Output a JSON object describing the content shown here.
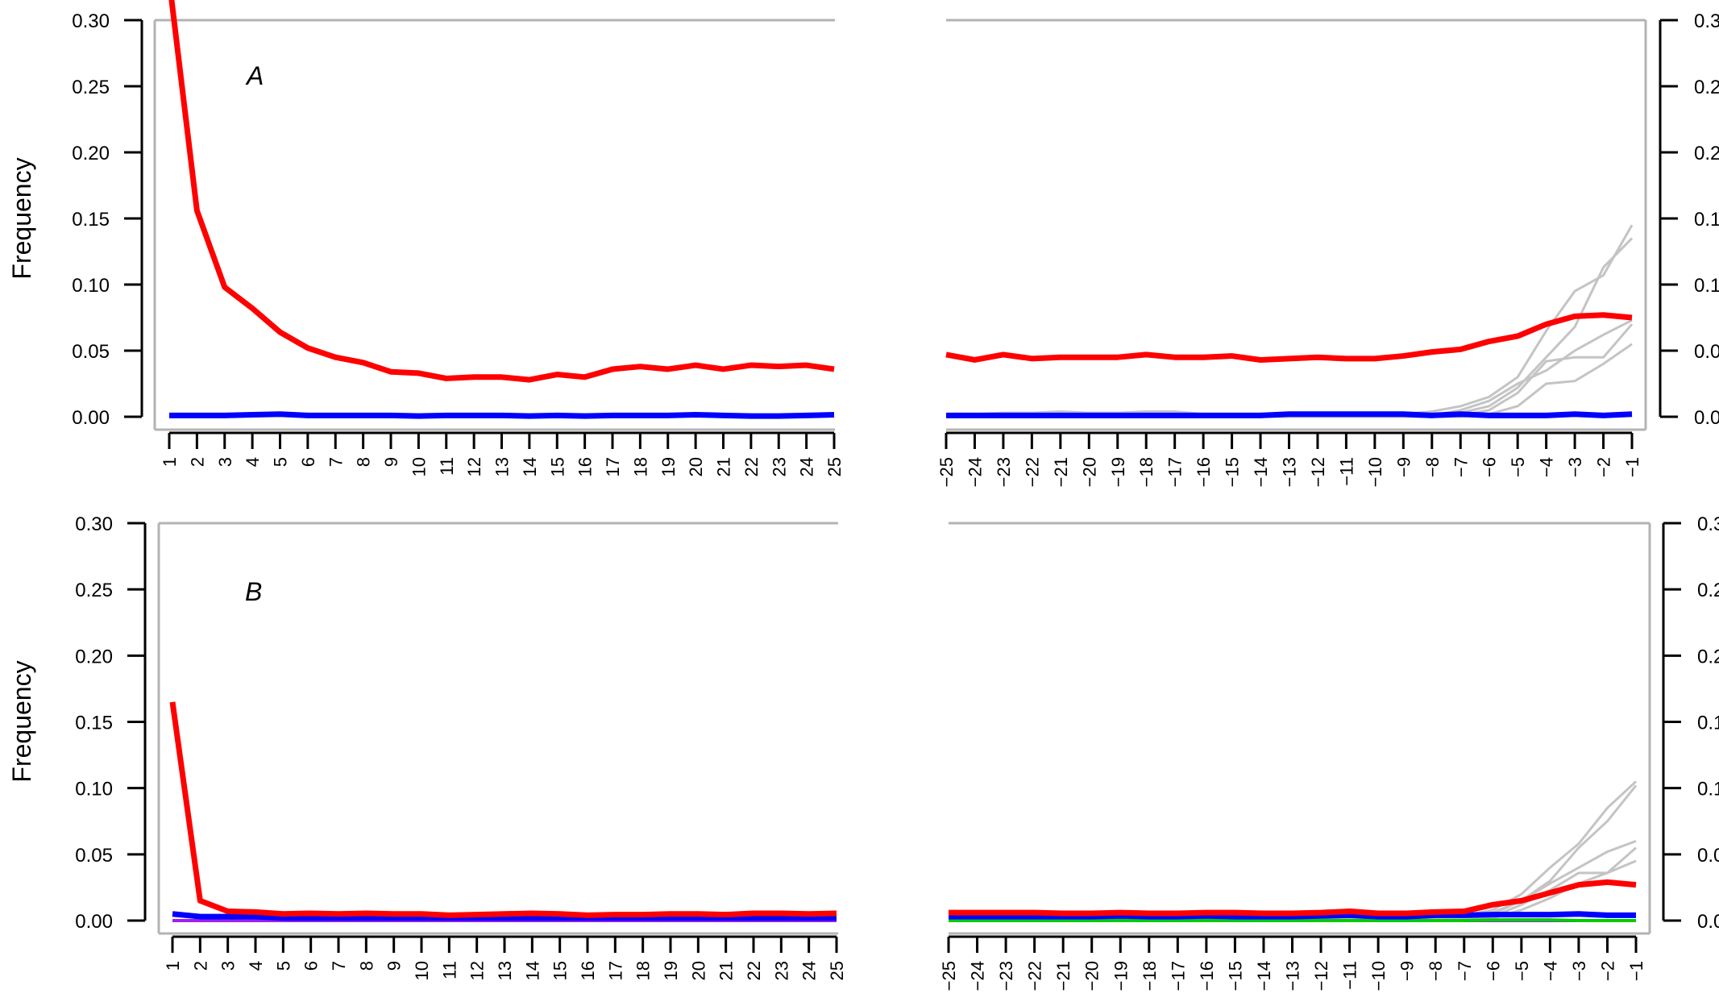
{
  "chart_data": [
    {
      "type": "line",
      "panel_label": "A",
      "ylabel": "Frequency",
      "ylim": [
        0,
        0.3
      ],
      "yticks": [
        "0.00",
        "0.05",
        "0.10",
        "0.15",
        "0.20",
        "0.25",
        "0.30"
      ],
      "left": {
        "x": [
          1,
          2,
          3,
          4,
          5,
          6,
          7,
          8,
          9,
          10,
          11,
          12,
          13,
          14,
          15,
          16,
          17,
          18,
          19,
          20,
          21,
          22,
          23,
          24,
          25
        ],
        "series": [
          {
            "color": "#ff0000",
            "values": [
              0.33,
              0.156,
              0.098,
              0.082,
              0.064,
              0.052,
              0.045,
              0.041,
              0.034,
              0.033,
              0.029,
              0.03,
              0.03,
              0.028,
              0.032,
              0.03,
              0.036,
              0.038,
              0.036,
              0.039,
              0.036,
              0.039,
              0.038,
              0.039,
              0.036
            ]
          },
          {
            "color": "#0000ff",
            "values": [
              0.001,
              0.001,
              0.001,
              0.0015,
              0.002,
              0.001,
              0.001,
              0.001,
              0.001,
              0.0005,
              0.001,
              0.001,
              0.001,
              0.0005,
              0.001,
              0.0005,
              0.001,
              0.001,
              0.001,
              0.0015,
              0.001,
              0.0005,
              0.0005,
              0.001,
              0.0015
            ]
          }
        ]
      },
      "right": {
        "x": [
          -25,
          -24,
          -23,
          -22,
          -21,
          -20,
          -19,
          -18,
          -17,
          -16,
          -15,
          -14,
          -13,
          -12,
          -11,
          -10,
          -9,
          -8,
          -7,
          -6,
          -5,
          -4,
          -3,
          -2,
          -1
        ],
        "gray_series": [
          [
            0.002,
            0.002,
            0.003,
            0.003,
            0.004,
            0.003,
            0.003,
            0.004,
            0.004,
            0.002,
            0.002,
            0.002,
            0.002,
            0.002,
            0.002,
            0.002,
            0.002,
            0.004,
            0.008,
            0.015,
            0.03,
            0.065,
            0.095,
            0.107,
            0.145
          ],
          [
            0.001,
            0.001,
            0.001,
            0.001,
            0.001,
            0.001,
            0.001,
            0.001,
            0.001,
            0.001,
            0.001,
            0.001,
            0.001,
            0.001,
            0.001,
            0.001,
            0.001,
            0.001,
            0.003,
            0.008,
            0.022,
            0.045,
            0.068,
            0.113,
            0.135
          ],
          [
            0,
            0,
            0,
            0,
            0,
            0,
            0,
            0,
            0,
            0,
            0,
            0,
            0,
            0,
            0,
            0,
            0,
            0,
            0.001,
            0.005,
            0.018,
            0.042,
            0.045,
            0.045,
            0.07
          ],
          [
            0,
            0,
            0,
            0,
            0,
            0,
            0,
            0,
            0,
            0,
            0,
            0,
            0,
            0,
            0,
            0,
            0,
            0,
            0,
            0.002,
            0.008,
            0.025,
            0.027,
            0.04,
            0.055
          ],
          [
            0,
            0,
            0,
            0,
            0,
            0,
            0,
            0,
            0,
            0,
            0,
            0,
            0,
            0,
            0,
            0,
            0,
            0.001,
            0.005,
            0.012,
            0.025,
            0.035,
            0.05,
            0.062,
            0.073
          ]
        ],
        "series": [
          {
            "color": "#ff0000",
            "values": [
              0.047,
              0.043,
              0.047,
              0.044,
              0.045,
              0.045,
              0.045,
              0.047,
              0.045,
              0.045,
              0.046,
              0.043,
              0.044,
              0.045,
              0.044,
              0.044,
              0.046,
              0.049,
              0.051,
              0.057,
              0.061,
              0.07,
              0.076,
              0.077,
              0.075
            ]
          },
          {
            "color": "#0000ff",
            "values": [
              0.001,
              0.001,
              0.001,
              0.001,
              0.001,
              0.001,
              0.001,
              0.001,
              0.001,
              0.001,
              0.001,
              0.001,
              0.002,
              0.002,
              0.002,
              0.002,
              0.002,
              0.001,
              0.002,
              0.001,
              0.001,
              0.001,
              0.002,
              0.001,
              0.002
            ]
          }
        ]
      }
    },
    {
      "type": "line",
      "panel_label": "B",
      "ylabel": "Frequency",
      "ylim": [
        0,
        0.3
      ],
      "yticks": [
        "0.00",
        "0.05",
        "0.10",
        "0.15",
        "0.20",
        "0.25",
        "0.30"
      ],
      "left": {
        "x": [
          1,
          2,
          3,
          4,
          5,
          6,
          7,
          8,
          9,
          10,
          11,
          12,
          13,
          14,
          15,
          16,
          17,
          18,
          19,
          20,
          21,
          22,
          23,
          24,
          25
        ],
        "series": [
          {
            "color": "#a020f0",
            "values": [
              0,
              0,
              0,
              0,
              0,
              0,
              0,
              0,
              0,
              0,
              0,
              0,
              0,
              0,
              0,
              0,
              0,
              0,
              0,
              0,
              0,
              0,
              0,
              0,
              0
            ]
          },
          {
            "color": "#0000ff",
            "values": [
              0.005,
              0.003,
              0.003,
              0.003,
              0.002,
              0.002,
              0.002,
              0.002,
              0.002,
              0.002,
              0.002,
              0.002,
              0.002,
              0.002,
              0.002,
              0.002,
              0.002,
              0.002,
              0.002,
              0.002,
              0.002,
              0.002,
              0.002,
              0.002,
              0.002
            ]
          },
          {
            "color": "#ff0000",
            "values": [
              0.165,
              0.015,
              0.007,
              0.0065,
              0.005,
              0.0055,
              0.005,
              0.0055,
              0.005,
              0.005,
              0.004,
              0.0045,
              0.005,
              0.0055,
              0.005,
              0.004,
              0.0045,
              0.0045,
              0.005,
              0.005,
              0.0045,
              0.0055,
              0.0055,
              0.005,
              0.0055
            ]
          }
        ]
      },
      "right": {
        "x": [
          -25,
          -24,
          -23,
          -22,
          -21,
          -20,
          -19,
          -18,
          -17,
          -16,
          -15,
          -14,
          -13,
          -12,
          -11,
          -10,
          -9,
          -8,
          -7,
          -6,
          -5,
          -4,
          -3,
          -2,
          -1
        ],
        "gray_series": [
          [
            0.001,
            0.001,
            0.001,
            0.001,
            0.001,
            0.001,
            0.001,
            0.001,
            0.001,
            0.002,
            0.001,
            0.001,
            0.001,
            0.001,
            0.001,
            0.001,
            0.001,
            0.002,
            0.004,
            0.008,
            0.02,
            0.04,
            0.058,
            0.085,
            0.105
          ],
          [
            0,
            0,
            0,
            0,
            0,
            0,
            0,
            0,
            0,
            0,
            0,
            0,
            0,
            0,
            0,
            0,
            0,
            0.001,
            0.003,
            0.006,
            0.015,
            0.03,
            0.055,
            0.075,
            0.102
          ],
          [
            0,
            0,
            0,
            0,
            0,
            0,
            0,
            0,
            0,
            0,
            0,
            0,
            0,
            0,
            0,
            0,
            0,
            0,
            0.002,
            0.005,
            0.015,
            0.028,
            0.04,
            0.052,
            0.06
          ],
          [
            0,
            0,
            0,
            0,
            0,
            0,
            0,
            0,
            0,
            0,
            0,
            0,
            0,
            0,
            0,
            0,
            0,
            0,
            0.001,
            0.003,
            0.012,
            0.023,
            0.036,
            0.036,
            0.055
          ],
          [
            0,
            0,
            0,
            0,
            0,
            0,
            0,
            0,
            0,
            0,
            0,
            0,
            0,
            0,
            0,
            0,
            0,
            0,
            0,
            0.002,
            0.008,
            0.017,
            0.028,
            0.036,
            0.045
          ]
        ],
        "series": [
          {
            "color": "#a020f0",
            "values": [
              0,
              0,
              0,
              0,
              0,
              0,
              0,
              0,
              0,
              0,
              0,
              0,
              0,
              0,
              0,
              0,
              0,
              0,
              0,
              0,
              0,
              0,
              0,
              0,
              0
            ]
          },
          {
            "color": "#00cc00",
            "values": [
              0,
              0,
              0,
              0,
              0,
              0,
              0,
              0,
              0,
              0,
              0,
              0,
              0,
              0,
              0,
              0,
              0,
              0,
              0,
              0.0005,
              0.0005,
              0.0005,
              0,
              0,
              0
            ]
          },
          {
            "color": "#0000ff",
            "values": [
              0.003,
              0.003,
              0.003,
              0.003,
              0.003,
              0.003,
              0.0035,
              0.003,
              0.003,
              0.0035,
              0.003,
              0.003,
              0.003,
              0.0035,
              0.004,
              0.003,
              0.003,
              0.004,
              0.004,
              0.0045,
              0.0045,
              0.0045,
              0.005,
              0.004,
              0.004
            ]
          },
          {
            "color": "#ff0000",
            "values": [
              0.006,
              0.006,
              0.006,
              0.006,
              0.0055,
              0.0055,
              0.006,
              0.0055,
              0.0055,
              0.006,
              0.006,
              0.0055,
              0.0055,
              0.006,
              0.007,
              0.0055,
              0.0055,
              0.0065,
              0.007,
              0.012,
              0.015,
              0.021,
              0.027,
              0.029,
              0.027
            ]
          }
        ]
      }
    }
  ]
}
